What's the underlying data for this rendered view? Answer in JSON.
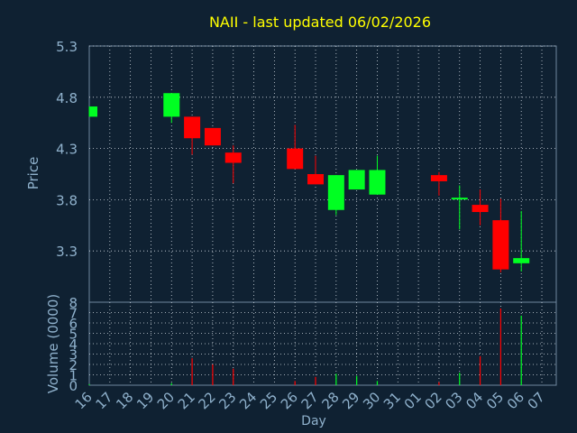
{
  "chart_data": {
    "type": "candlestick",
    "title": "NAII - last updated 06/02/2026",
    "xlabel": "Day",
    "ylabel_price": "Price",
    "ylabel_volume": "Volume (0000)",
    "x_ticks": [
      "16",
      "17",
      "18",
      "19",
      "20",
      "21",
      "22",
      "23",
      "24",
      "25",
      "26",
      "27",
      "28",
      "29",
      "30",
      "31",
      "01",
      "02",
      "03",
      "04",
      "05",
      "06",
      "07"
    ],
    "price_ticks": [
      "3.3",
      "3.8",
      "4.3",
      "4.8",
      "5.3"
    ],
    "price_range": [
      2.8,
      5.3
    ],
    "volume_ticks": [
      "0",
      "1",
      "2",
      "3",
      "4",
      "5",
      "6",
      "7",
      "8"
    ],
    "volume_range": [
      0,
      8
    ],
    "grid": true,
    "candles": [
      {
        "day": 0,
        "open": 4.61,
        "close": 4.71,
        "high": 4.71,
        "low": 4.61
      },
      {
        "day": 4,
        "open": 4.61,
        "close": 4.84,
        "high": 4.84,
        "low": 4.55
      },
      {
        "day": 5,
        "open": 4.61,
        "close": 4.4,
        "high": 4.61,
        "low": 4.24
      },
      {
        "day": 6,
        "open": 4.5,
        "close": 4.33,
        "high": 4.5,
        "low": 4.33
      },
      {
        "day": 7,
        "open": 4.26,
        "close": 4.16,
        "high": 4.33,
        "low": 3.96
      },
      {
        "day": 10,
        "open": 4.3,
        "close": 4.1,
        "high": 4.53,
        "low": 4.1
      },
      {
        "day": 11,
        "open": 4.05,
        "close": 3.95,
        "high": 4.23,
        "low": 3.95
      },
      {
        "day": 12,
        "open": 3.7,
        "close": 4.04,
        "high": 4.04,
        "low": 3.65
      },
      {
        "day": 13,
        "open": 3.9,
        "close": 4.09,
        "high": 4.09,
        "low": 3.9
      },
      {
        "day": 14,
        "open": 3.85,
        "close": 4.09,
        "high": 4.23,
        "low": 3.85
      },
      {
        "day": 17,
        "open": 4.04,
        "close": 3.98,
        "high": 4.07,
        "low": 3.84
      },
      {
        "day": 18,
        "open": 3.81,
        "close": 3.82,
        "high": 3.94,
        "low": 3.51
      },
      {
        "day": 19,
        "open": 3.75,
        "close": 3.68,
        "high": 3.9,
        "low": 3.55
      },
      {
        "day": 20,
        "open": 3.6,
        "close": 3.12,
        "high": 3.81,
        "low": 3.09
      },
      {
        "day": 21,
        "open": 3.18,
        "close": 3.23,
        "high": 3.69,
        "low": 3.1
      }
    ],
    "volumes": [
      {
        "day": 0,
        "value": 0.1,
        "dir": "up"
      },
      {
        "day": 4,
        "value": 0.2,
        "dir": "up"
      },
      {
        "day": 5,
        "value": 2.6,
        "dir": "down"
      },
      {
        "day": 6,
        "value": 2.0,
        "dir": "down"
      },
      {
        "day": 7,
        "value": 1.6,
        "dir": "down"
      },
      {
        "day": 10,
        "value": 0.4,
        "dir": "down"
      },
      {
        "day": 11,
        "value": 0.8,
        "dir": "down"
      },
      {
        "day": 12,
        "value": 1.1,
        "dir": "up"
      },
      {
        "day": 13,
        "value": 0.9,
        "dir": "up"
      },
      {
        "day": 14,
        "value": 0.4,
        "dir": "up"
      },
      {
        "day": 17,
        "value": 0.3,
        "dir": "down"
      },
      {
        "day": 18,
        "value": 1.2,
        "dir": "up"
      },
      {
        "day": 19,
        "value": 2.8,
        "dir": "down"
      },
      {
        "day": 20,
        "value": 7.4,
        "dir": "down"
      },
      {
        "day": 21,
        "value": 6.7,
        "dir": "up"
      }
    ],
    "colors": {
      "up": "#00ff22",
      "down": "#ff0000",
      "background": "#0f2132",
      "axis_text": "#8fb1cc",
      "title": "#ffff00",
      "grid": "#d0d8e0",
      "frame": "#6f889e"
    }
  }
}
